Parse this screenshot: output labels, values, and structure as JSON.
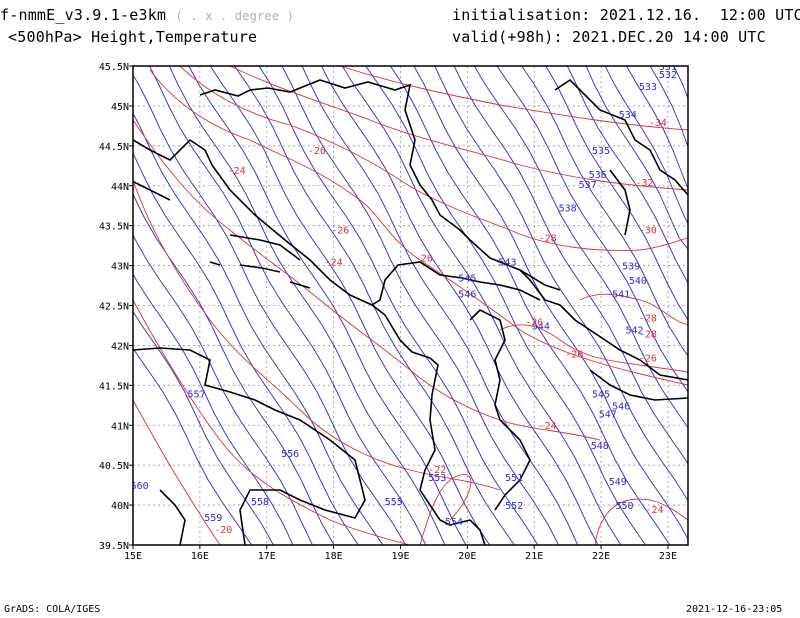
{
  "header": {
    "model": "f-nmmE_v3.9.1-e3km",
    "model_sub": "( . x . degree )",
    "level": "<500hPa> Height,Temperature",
    "init_label": "initialisation:",
    "init_value": "2021.12.16.  12:00 UTC",
    "valid_label": "valid(+98h):",
    "valid_value": "2021.DEC.20 14:00 UTC"
  },
  "footer": {
    "left": "GrADS: COLA/IGES",
    "right": "2021-12-16-23:05"
  },
  "chart_data": {
    "type": "map",
    "lon_range": [
      15,
      23.3
    ],
    "lat_range": [
      39.5,
      45.5
    ],
    "x_ticks": [
      "15E",
      "16E",
      "17E",
      "18E",
      "19E",
      "20E",
      "21E",
      "22E",
      "23E"
    ],
    "y_ticks": [
      "39.5N",
      "40N",
      "40.5N",
      "41N",
      "41.5N",
      "42N",
      "42.5N",
      "43N",
      "43.5N",
      "44N",
      "44.5N",
      "45N",
      "45.5N"
    ],
    "colors": {
      "height": "#2b2bd6",
      "temperature": "#e23030",
      "coast": "#000000",
      "grid": "#9a9a9a"
    },
    "height_labels": [
      {
        "text": "531",
        "lon": 23.0,
        "lat": 45.45
      },
      {
        "text": "532",
        "lon": 23.0,
        "lat": 45.35
      },
      {
        "text": "533",
        "lon": 22.7,
        "lat": 45.2
      },
      {
        "text": "534",
        "lon": 22.4,
        "lat": 44.85
      },
      {
        "text": "535",
        "lon": 22.0,
        "lat": 44.4
      },
      {
        "text": "536",
        "lon": 21.95,
        "lat": 44.1
      },
      {
        "text": "537",
        "lon": 21.8,
        "lat": 43.97
      },
      {
        "text": "538",
        "lon": 21.5,
        "lat": 43.68
      },
      {
        "text": "539",
        "lon": 22.45,
        "lat": 42.95
      },
      {
        "text": "540",
        "lon": 22.55,
        "lat": 42.77
      },
      {
        "text": "541",
        "lon": 22.3,
        "lat": 42.6
      },
      {
        "text": "543",
        "lon": 20.6,
        "lat": 43.0
      },
      {
        "text": "545",
        "lon": 20.0,
        "lat": 42.8
      },
      {
        "text": "546",
        "lon": 20.0,
        "lat": 42.6
      },
      {
        "text": "542",
        "lon": 22.5,
        "lat": 42.15
      },
      {
        "text": "544",
        "lon": 21.1,
        "lat": 42.2
      },
      {
        "text": "545",
        "lon": 22.0,
        "lat": 41.35
      },
      {
        "text": "546",
        "lon": 22.3,
        "lat": 41.2
      },
      {
        "text": "547",
        "lon": 22.1,
        "lat": 41.1
      },
      {
        "text": "548",
        "lon": 21.98,
        "lat": 40.7
      },
      {
        "text": "549",
        "lon": 22.25,
        "lat": 40.25
      },
      {
        "text": "550",
        "lon": 22.35,
        "lat": 39.95
      },
      {
        "text": "551",
        "lon": 20.7,
        "lat": 40.3
      },
      {
        "text": "552",
        "lon": 20.7,
        "lat": 39.95
      },
      {
        "text": "553",
        "lon": 19.55,
        "lat": 40.3
      },
      {
        "text": "554",
        "lon": 19.8,
        "lat": 39.75
      },
      {
        "text": "555",
        "lon": 18.9,
        "lat": 40.0
      },
      {
        "text": "556",
        "lon": 17.35,
        "lat": 40.6
      },
      {
        "text": "557",
        "lon": 15.95,
        "lat": 41.35
      },
      {
        "text": "558",
        "lon": 16.9,
        "lat": 40.0
      },
      {
        "text": "559",
        "lon": 16.2,
        "lat": 39.8
      },
      {
        "text": "560",
        "lon": 15.1,
        "lat": 40.2
      }
    ],
    "temperature_labels": [
      {
        "text": "-34",
        "lon": 22.85,
        "lat": 44.75
      },
      {
        "text": "-32",
        "lon": 22.65,
        "lat": 44.0
      },
      {
        "text": "-30",
        "lon": 22.7,
        "lat": 43.4
      },
      {
        "text": "-28",
        "lon": 21.2,
        "lat": 43.3
      },
      {
        "text": "-28",
        "lon": 22.7,
        "lat": 42.3
      },
      {
        "text": "-28",
        "lon": 22.7,
        "lat": 42.1
      },
      {
        "text": "-26",
        "lon": 17.75,
        "lat": 44.4
      },
      {
        "text": "-26",
        "lon": 18.1,
        "lat": 43.4
      },
      {
        "text": "-26",
        "lon": 19.35,
        "lat": 43.05
      },
      {
        "text": "-26",
        "lon": 21.0,
        "lat": 42.25
      },
      {
        "text": "-26",
        "lon": 21.6,
        "lat": 41.85
      },
      {
        "text": "-26",
        "lon": 22.7,
        "lat": 41.8
      },
      {
        "text": "-24",
        "lon": 16.55,
        "lat": 44.15
      },
      {
        "text": "-24",
        "lon": 18.0,
        "lat": 43.0
      },
      {
        "text": "-24",
        "lon": 21.2,
        "lat": 40.95
      },
      {
        "text": "-24",
        "lon": 22.8,
        "lat": 39.9
      },
      {
        "text": "-22",
        "lon": 19.55,
        "lat": 40.4
      },
      {
        "text": "-20",
        "lon": 16.35,
        "lat": 39.65
      }
    ]
  }
}
